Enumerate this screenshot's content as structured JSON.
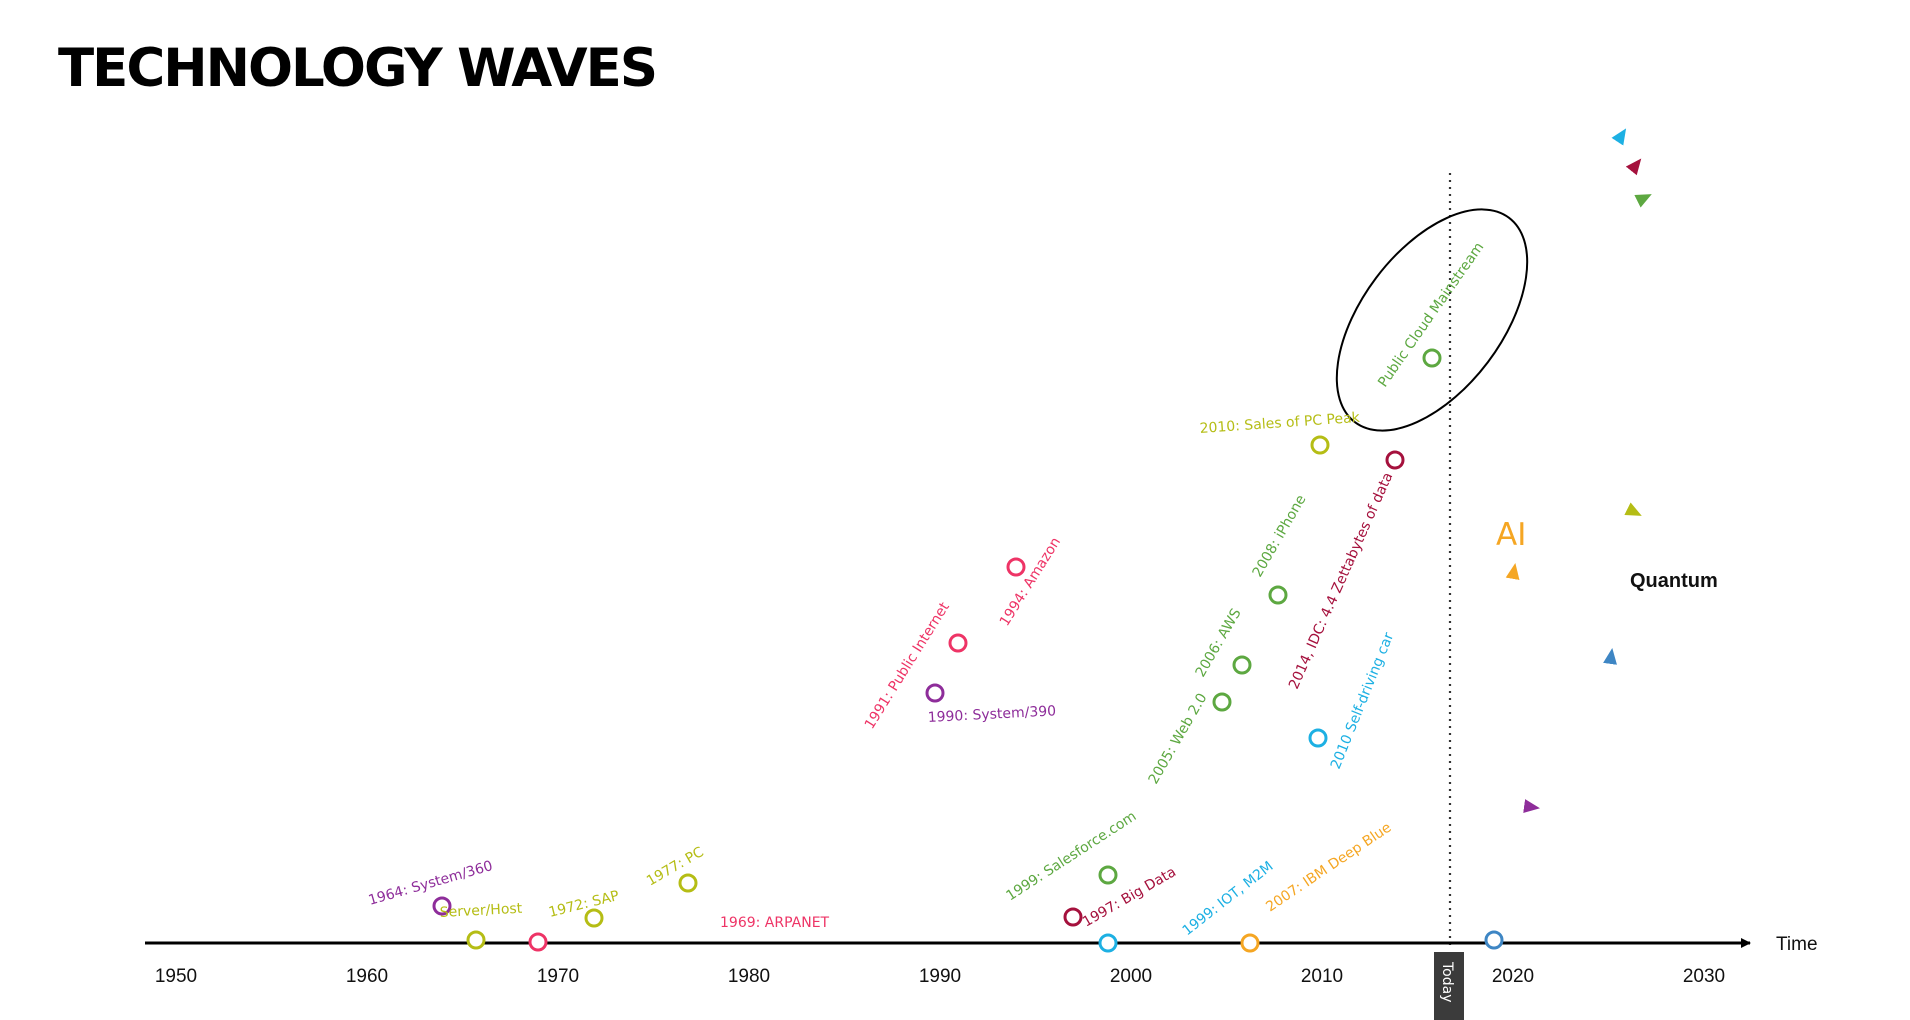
{
  "title": "TECHNOLOGY WAVES",
  "axis": {
    "label": "Time",
    "start": 1950,
    "end": 2030,
    "ticks": [
      "1950",
      "1960",
      "1970",
      "1980",
      "1990",
      "2000",
      "2010",
      "2020",
      "2030"
    ]
  },
  "today": {
    "year": 2017,
    "label": "Today"
  },
  "colors": {
    "mainframe": "#8e2d9a",
    "pc": "#b5bd15",
    "internet": "#ee3466",
    "cloud": "#5da841",
    "bigdata": "#a5113d",
    "iot": "#1db0e3",
    "ai": "#f5a623",
    "quantum": "#3e86c4",
    "axis": "#000000"
  },
  "waves": [
    {
      "id": "mainframe",
      "events": [
        {
          "year": 1964,
          "label": "1964: System/360"
        },
        {
          "year": 1990,
          "label": "1990: System/390"
        }
      ]
    },
    {
      "id": "pc",
      "events": [
        {
          "year": 1966,
          "label": "Server/Host"
        },
        {
          "year": 1972,
          "label": "1972: SAP"
        },
        {
          "year": 1977,
          "label": "1977: PC"
        },
        {
          "year": 2010,
          "label": "2010: Sales of PC Peak"
        }
      ]
    },
    {
      "id": "internet",
      "events": [
        {
          "year": 1969,
          "label": "1969: ARPANET"
        },
        {
          "year": 1991,
          "label": "1991: Public Internet"
        },
        {
          "year": 1994,
          "label": "1994: Amazon"
        }
      ]
    },
    {
      "id": "cloud",
      "events": [
        {
          "year": 1999,
          "label": "1999: Salesforce.com"
        },
        {
          "year": 2005,
          "label": "2005: Web 2.0"
        },
        {
          "year": 2006,
          "label": "2006: AWS"
        },
        {
          "year": 2008,
          "label": "2008: iPhone"
        },
        {
          "year": 2014,
          "label": "Public Cloud Mainstream"
        }
      ]
    },
    {
      "id": "bigdata",
      "events": [
        {
          "year": 1997,
          "label": "1997: Big Data"
        },
        {
          "year": 2014,
          "label": "2014, IDC: 4.4 Zettabytes of data"
        }
      ]
    },
    {
      "id": "iot",
      "events": [
        {
          "year": 1999,
          "label": "1999: IOT, M2M"
        },
        {
          "year": 2010,
          "label": "2010 Self-driving car"
        }
      ]
    },
    {
      "id": "ai",
      "name": "AI",
      "events": [
        {
          "year": 2007,
          "label": "2007: IBM Deep Blue"
        }
      ]
    },
    {
      "id": "quantum",
      "name": "Quantum",
      "events": []
    }
  ]
}
